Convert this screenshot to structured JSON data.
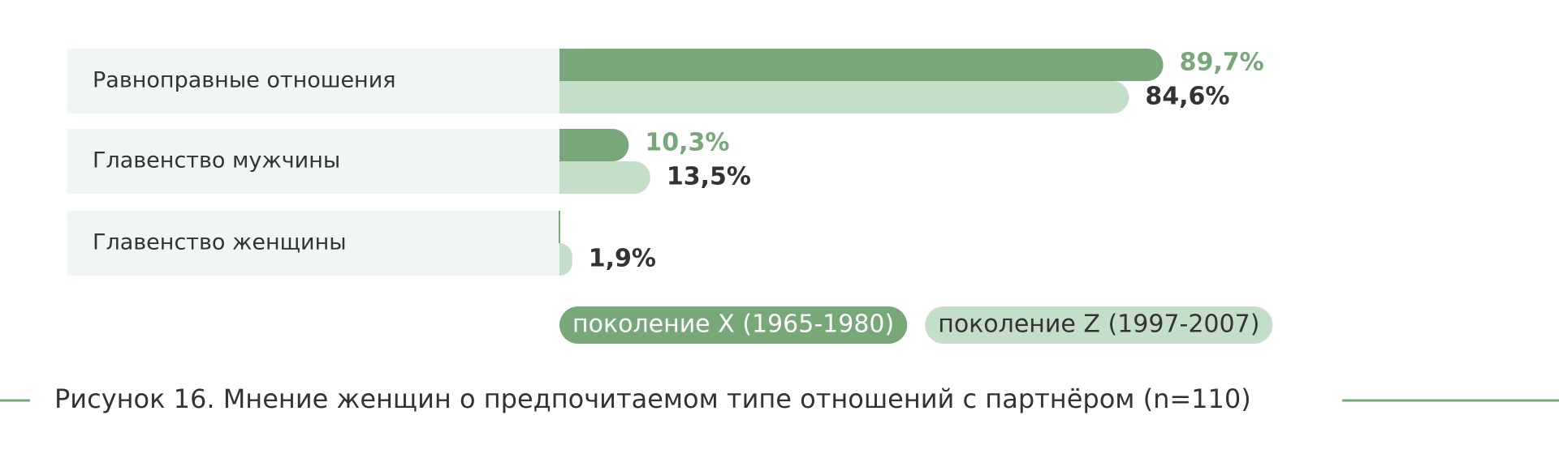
{
  "chart_data": {
    "type": "bar",
    "orientation": "horizontal",
    "categories": [
      "Равноправные отношения",
      "Главенство мужчины",
      "Главенство женщины"
    ],
    "series": [
      {
        "name": "поколение X (1965-1980)",
        "color": "#78a77a",
        "label_color": "#78a77a",
        "values": [
          89.7,
          10.3,
          0
        ],
        "value_labels": [
          "89,7%",
          "10,3%",
          null
        ]
      },
      {
        "name": "поколение Z (1997-2007)",
        "color": "#c4dec8",
        "label_color": "#333333",
        "values": [
          84.6,
          13.5,
          1.9
        ],
        "value_labels": [
          "84,6%",
          "13,5%",
          "1,9%"
        ]
      }
    ],
    "caption": "Рисунок 16. Мнение женщин о предпочитаемом типе отношений с партнёром (n=110)"
  }
}
